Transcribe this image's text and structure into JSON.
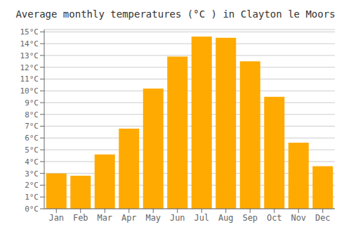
{
  "chart_data": {
    "type": "bar",
    "title": "Average monthly temperatures (°C ) in Clayton le Moors",
    "categories": [
      "Jan",
      "Feb",
      "Mar",
      "Apr",
      "May",
      "Jun",
      "Jul",
      "Aug",
      "Sep",
      "Oct",
      "Nov",
      "Dec"
    ],
    "values": [
      3.0,
      2.8,
      4.6,
      6.8,
      10.2,
      12.9,
      14.6,
      14.5,
      12.5,
      9.5,
      5.6,
      3.6
    ],
    "color": "#FFAA00",
    "ylim": [
      0,
      15.2
    ],
    "yticks": [
      {
        "value": 0,
        "label": "0°C"
      },
      {
        "value": 1,
        "label": "1°C"
      },
      {
        "value": 2,
        "label": "2°C"
      },
      {
        "value": 3,
        "label": "3°C"
      },
      {
        "value": 4,
        "label": "4°C"
      },
      {
        "value": 5,
        "label": "5°C"
      },
      {
        "value": 6,
        "label": "6°C"
      },
      {
        "value": 7,
        "label": "7°C"
      },
      {
        "value": 8,
        "label": "8°C"
      },
      {
        "value": 9,
        "label": "9°C"
      },
      {
        "value": 10,
        "label": "10°C"
      },
      {
        "value": 11,
        "label": "11°C"
      },
      {
        "value": 12,
        "label": "12°C"
      },
      {
        "value": 13,
        "label": "13°C"
      },
      {
        "value": 14,
        "label": "14°C"
      },
      {
        "value": 15,
        "label": "15°C"
      }
    ],
    "grid": true
  }
}
